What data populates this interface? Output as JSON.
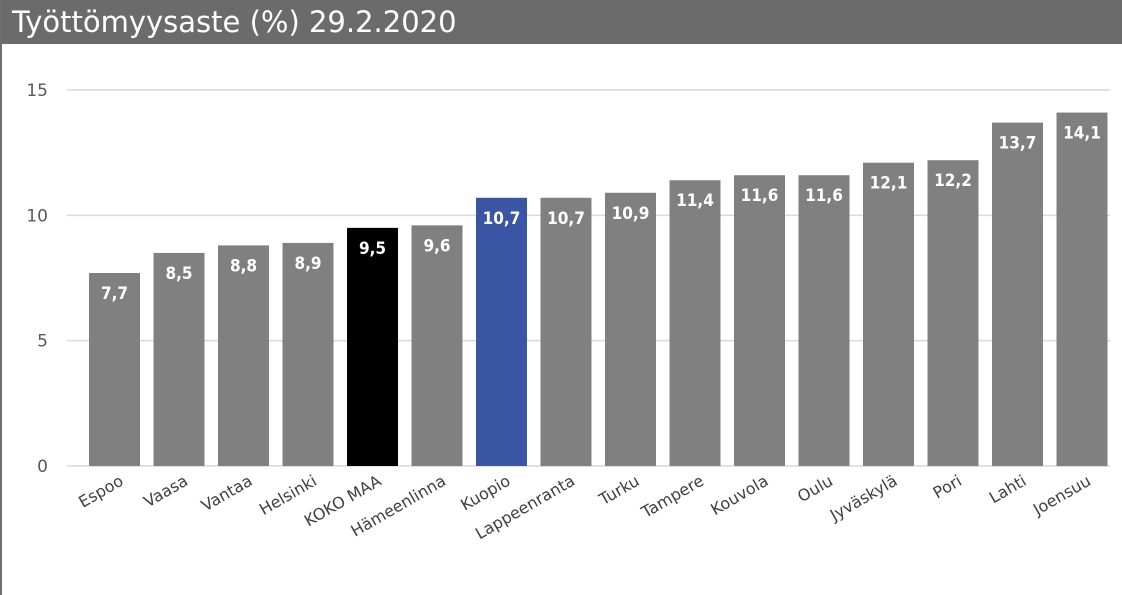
{
  "chart_data": {
    "type": "bar",
    "title": "Työttömyysaste (%) 29.2.2020",
    "xlabel": "",
    "ylabel": "",
    "ylim": [
      0,
      15
    ],
    "yticks": [
      "0",
      "5",
      "10",
      "15"
    ],
    "categories": [
      "Espoo",
      "Vaasa",
      "Vantaa",
      "Helsinki",
      "KOKO MAA",
      "Hämeenlinna",
      "Kuopio",
      "Lappeenranta",
      "Turku",
      "Tampere",
      "Kouvola",
      "Oulu",
      "Jyväskylä",
      "Pori",
      "Lahti",
      "Joensuu"
    ],
    "values": [
      7.7,
      8.5,
      8.8,
      8.9,
      9.5,
      9.6,
      10.7,
      10.7,
      10.9,
      11.4,
      11.6,
      11.6,
      12.1,
      12.2,
      13.7,
      14.1
    ],
    "value_labels": [
      "7,7",
      "8,5",
      "8,8",
      "8,9",
      "9,5",
      "9,6",
      "10,7",
      "10,7",
      "10,9",
      "11,4",
      "11,6",
      "11,6",
      "12,1",
      "12,2",
      "13,7",
      "14,1"
    ],
    "grid": true,
    "legend": "none",
    "colors": {
      "default": "#808080",
      "highlight_national": "#000000",
      "highlight_city": "#3a55a4",
      "grid": "#d9d9d9",
      "title_bar": "#6b6b6b"
    },
    "highlights": {
      "KOKO MAA": "#000000",
      "Kuopio": "#3a55a4"
    }
  }
}
